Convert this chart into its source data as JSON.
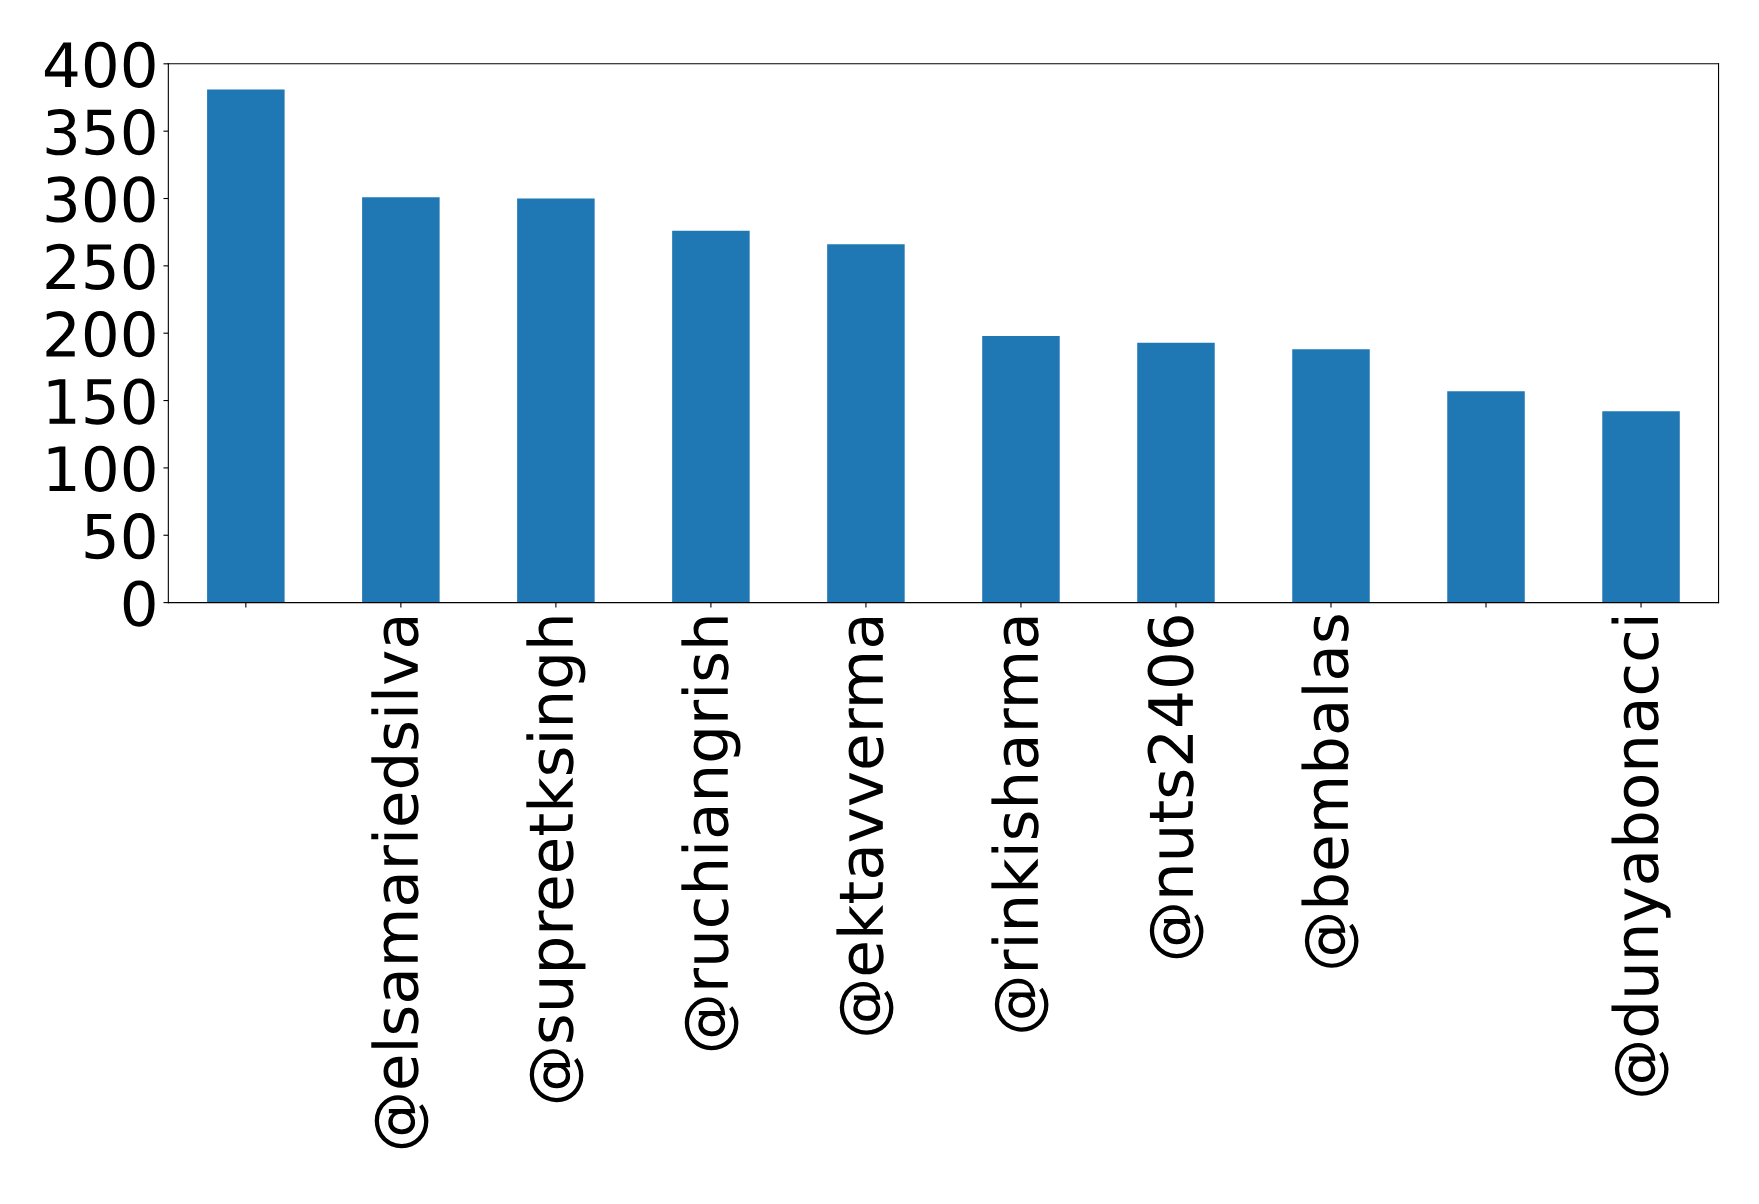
{
  "chart_data": {
    "type": "bar",
    "categories": [
      null,
      "@elsamariedsilva",
      "@supreetksingh",
      "@ruchiangrish",
      "@ektavverma",
      "@rinkisharma",
      "@nuts2406",
      "@bembalas",
      null,
      "@dunyabonacci"
    ],
    "values": [
      381,
      301,
      300,
      276,
      266,
      198,
      193,
      188,
      157,
      142
    ],
    "color": "#1f77b4",
    "ylim": [
      0,
      400
    ],
    "yticks": [
      0,
      50,
      100,
      150,
      200,
      250,
      300,
      350,
      400
    ],
    "grid": false,
    "legend": false
  }
}
